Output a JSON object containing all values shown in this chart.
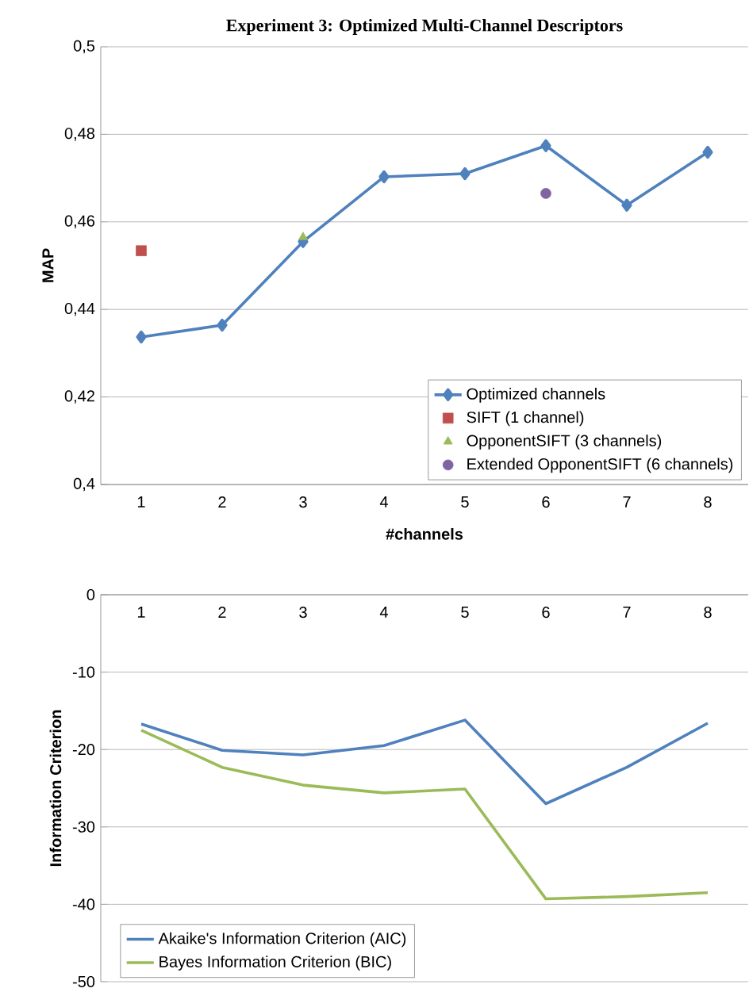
{
  "chart_data": [
    {
      "type": "line",
      "title": "Experiment 3: Optimized Multi-Channel Descriptors",
      "xlabel": "#channels",
      "ylabel": "MAP",
      "categories": [
        "1",
        "2",
        "3",
        "4",
        "5",
        "6",
        "7",
        "8"
      ],
      "series": [
        {
          "name": "Optimized channels",
          "color": "#4f81bd",
          "marker": "diamond",
          "values": [
            0.4337,
            0.4364,
            0.4555,
            0.4703,
            0.471,
            0.4774,
            0.4638,
            0.4759
          ]
        },
        {
          "name": "SIFT (1 channel)",
          "type": "scatter",
          "color": "#c0504d",
          "marker": "square",
          "values": [
            0.4534,
            null,
            null,
            null,
            null,
            null,
            null,
            null
          ]
        },
        {
          "name": "OpponentSIFT (3 channels)",
          "type": "scatter",
          "color": "#9bbb59",
          "marker": "triangle",
          "values": [
            null,
            null,
            0.4565,
            null,
            null,
            null,
            null,
            null
          ]
        },
        {
          "name": "Extended OpponentSIFT (6 channels)",
          "type": "scatter",
          "color": "#8064a2",
          "marker": "circle",
          "values": [
            null,
            null,
            null,
            null,
            null,
            0.4665,
            null,
            null
          ]
        }
      ],
      "ylim": [
        0.4,
        0.5
      ],
      "yticks": [
        {
          "value": 0.4,
          "label": "0,4"
        },
        {
          "value": 0.42,
          "label": "0,42"
        },
        {
          "value": 0.44,
          "label": "0,44"
        },
        {
          "value": 0.46,
          "label": "0,46"
        },
        {
          "value": 0.48,
          "label": "0,48"
        },
        {
          "value": 0.5,
          "label": "0,5"
        }
      ],
      "grid": "y",
      "legend": "bottom right"
    },
    {
      "type": "line",
      "ylabel": "Information Criterion",
      "categories": [
        "1",
        "2",
        "3",
        "4",
        "5",
        "6",
        "7",
        "8"
      ],
      "series": [
        {
          "name": "Akaike's Information Criterion (AIC)",
          "color": "#4f81bd",
          "values": [
            -16.7,
            -20.1,
            -20.7,
            -19.5,
            -16.2,
            -27.0,
            -22.3,
            -16.6
          ]
        },
        {
          "name": "Bayes Information Criterion (BIC)",
          "color": "#9bbb59",
          "values": [
            -17.5,
            -22.3,
            -24.6,
            -25.6,
            -25.1,
            -39.3,
            -39.0,
            -38.5
          ]
        }
      ],
      "ylim": [
        -50,
        0
      ],
      "yticks": [
        -50,
        -40,
        -30,
        -20,
        -10,
        0
      ],
      "grid": "y",
      "legend": "bottom left",
      "marker": "none"
    }
  ]
}
